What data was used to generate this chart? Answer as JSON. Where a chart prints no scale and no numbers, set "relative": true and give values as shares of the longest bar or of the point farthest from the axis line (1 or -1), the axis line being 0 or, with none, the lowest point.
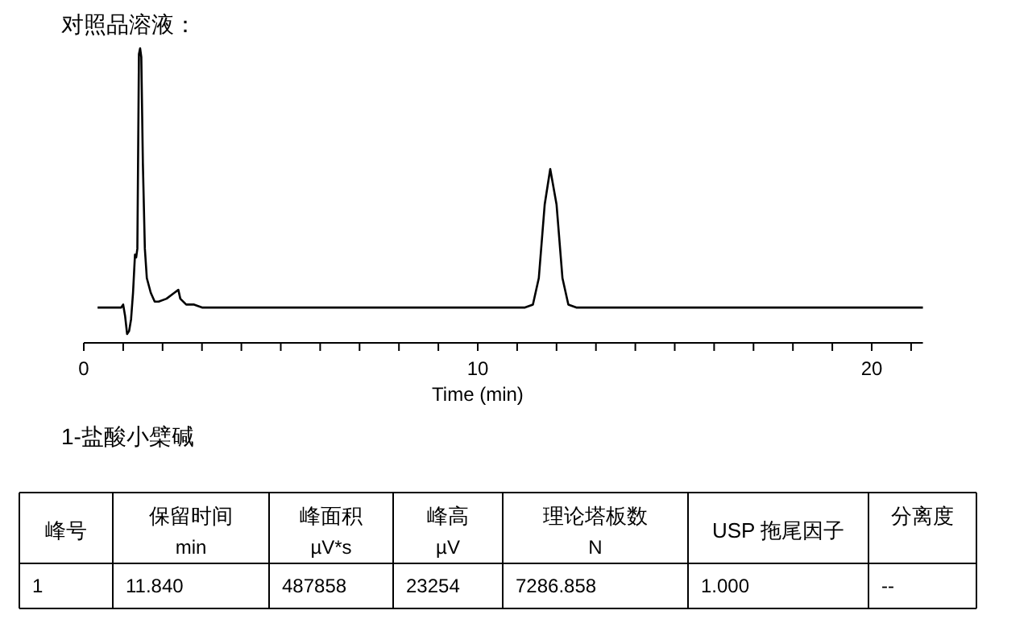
{
  "chart_data": {
    "type": "line",
    "relative": true,
    "title": "对照品溶液：",
    "xlabel": "Time (min)",
    "xlim": [
      0,
      21.3
    ],
    "xticks": [
      0,
      {
        "value": 1,
        "label": null
      },
      {
        "value": 2,
        "label": null
      },
      {
        "value": 3,
        "label": null
      },
      {
        "value": 4,
        "label": null
      },
      {
        "value": 5,
        "label": null
      },
      {
        "value": 6,
        "label": null
      },
      {
        "value": 7,
        "label": null
      },
      {
        "value": 8,
        "label": null
      },
      {
        "value": 9,
        "label": null
      },
      10,
      {
        "value": 11,
        "label": null
      },
      {
        "value": 12,
        "label": null
      },
      {
        "value": 13,
        "label": null
      },
      {
        "value": 14,
        "label": null
      },
      {
        "value": 15,
        "label": null
      },
      {
        "value": 16,
        "label": null
      },
      {
        "value": 17,
        "label": null
      },
      {
        "value": 18,
        "label": null
      },
      {
        "value": 19,
        "label": null
      },
      20,
      {
        "value": 21,
        "label": null
      }
    ],
    "series": [
      {
        "color": "#000000",
        "x": [
          0.35,
          0.95,
          1.0,
          1.05,
          1.1,
          1.15,
          1.2,
          1.25,
          1.3,
          1.33,
          1.36,
          1.4,
          1.43,
          1.46,
          1.5,
          1.55,
          1.6,
          1.7,
          1.8,
          1.9,
          2.1,
          2.3,
          2.4,
          2.45,
          2.6,
          2.8,
          3.0,
          10.5,
          11.2,
          11.4,
          11.55,
          11.7,
          11.84,
          12.0,
          12.15,
          12.3,
          12.5,
          21.3
        ],
        "values": [
          0.12,
          0.12,
          0.13,
          0.09,
          0.03,
          0.04,
          0.08,
          0.17,
          0.3,
          0.29,
          0.32,
          0.98,
          1.0,
          0.97,
          0.61,
          0.32,
          0.22,
          0.17,
          0.14,
          0.14,
          0.15,
          0.17,
          0.18,
          0.15,
          0.13,
          0.13,
          0.12,
          0.12,
          0.12,
          0.13,
          0.22,
          0.47,
          0.59,
          0.47,
          0.22,
          0.13,
          0.12,
          0.12
        ]
      }
    ],
    "annotations": [
      "1-盐酸小檗碱",
      "峰号",
      "保留时间\nmin",
      "峰面积\nµV*s",
      "峰高\nµV",
      "理论塔板数\nN",
      "USP 拖尾因子",
      "分离度",
      "1",
      "11.840",
      "487858",
      "23254",
      "7286.858",
      "1.000",
      "--"
    ]
  }
}
